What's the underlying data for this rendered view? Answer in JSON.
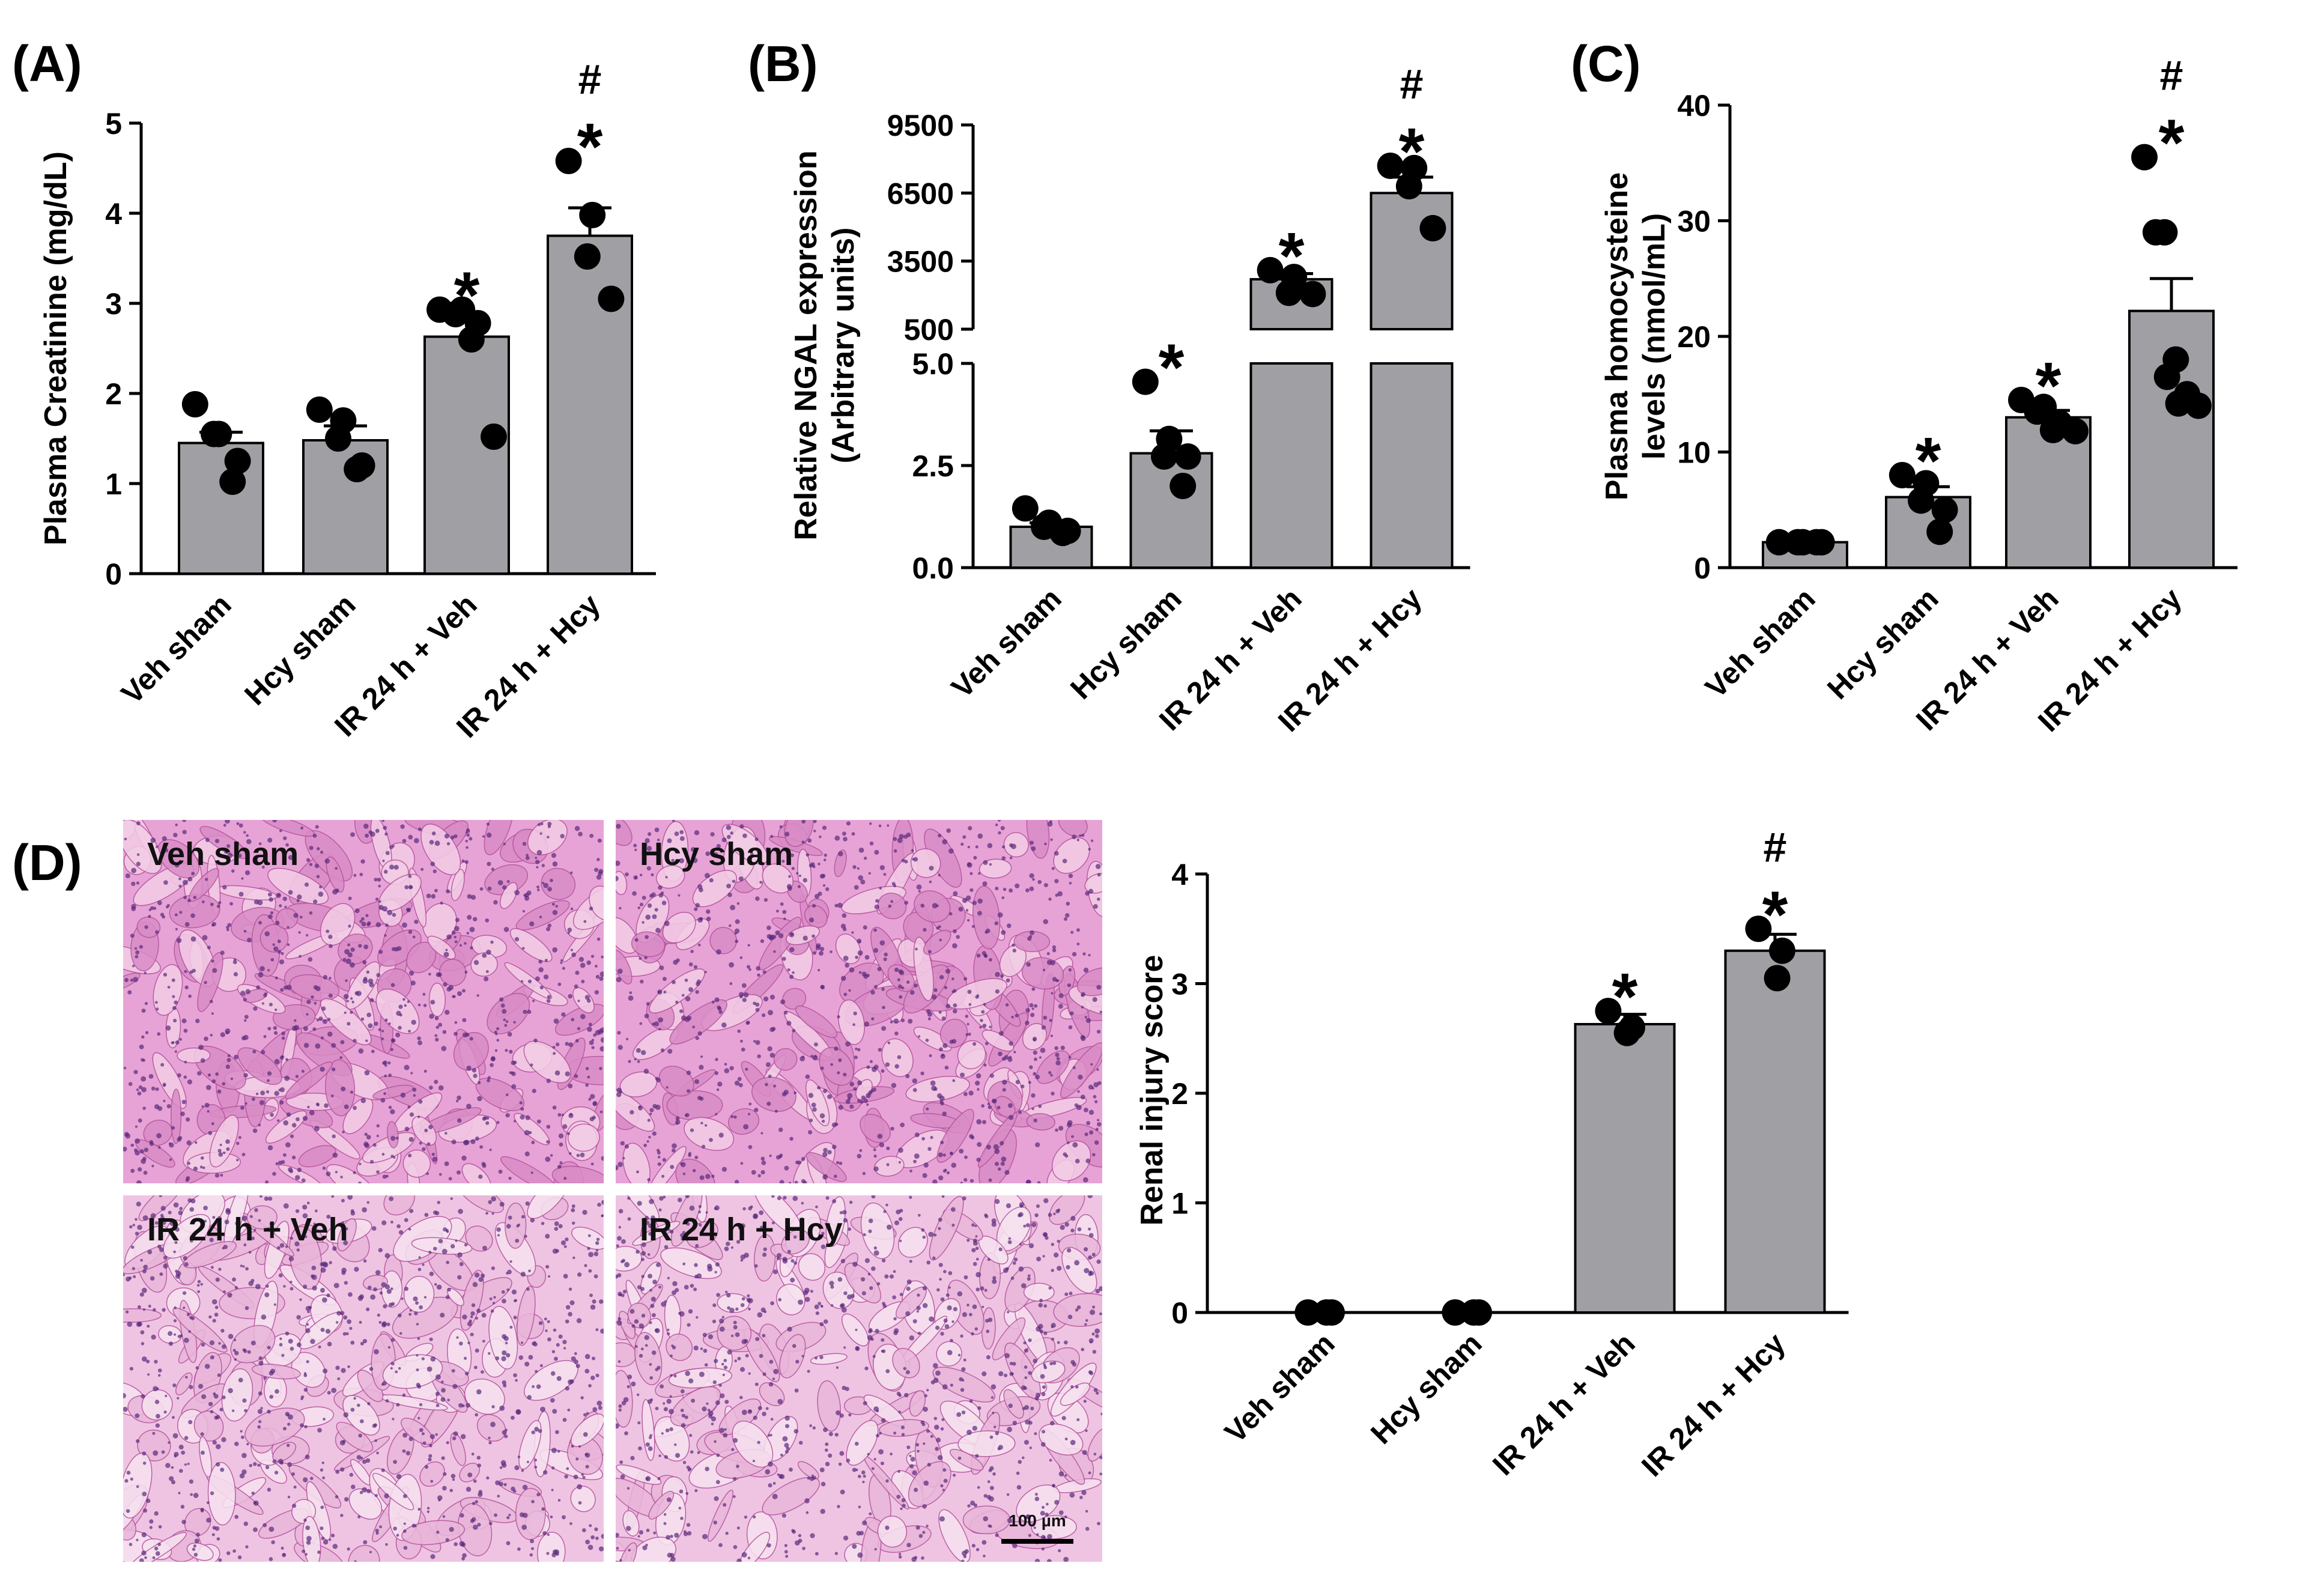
{
  "panel_letters": [
    "(A)",
    "(B)",
    "(C)",
    "(D)"
  ],
  "colors": {
    "bar_fill": "#a0a0a4",
    "dot": "#000000",
    "axis": "#000000",
    "tissue_base": "#e7a3d6"
  },
  "histology": {
    "labels": [
      "Veh sham",
      "Hcy sham",
      "IR 24 h + Veh",
      "IR 24 h + Hcy"
    ],
    "scale_bar": "100 µm"
  },
  "chart_data": [
    {
      "id": "A",
      "type": "bar",
      "title": "",
      "categories": [
        "Veh sham",
        "Hcy sham",
        "IR 24 h + Veh",
        "IR 24 h + Hcy"
      ],
      "ylabel": "Plasma Creatinine (mg/dL)",
      "xlabel": "",
      "ylim": [
        0,
        5
      ],
      "yticks": [
        0,
        1,
        2,
        3,
        4,
        5
      ],
      "values": [
        1.45,
        1.48,
        2.63,
        3.75
      ],
      "sem": [
        0.12,
        0.16,
        0.22,
        0.31
      ],
      "points": [
        [
          1.88,
          1.55,
          1.55,
          1.25,
          1.02
        ],
        [
          1.82,
          1.7,
          1.5,
          1.2,
          1.16
        ],
        [
          2.93,
          2.93,
          2.88,
          2.78,
          2.6,
          1.52
        ],
        [
          4.58,
          3.98,
          3.52,
          3.05
        ]
      ],
      "annotations": [
        "",
        "",
        "*",
        "*\n#"
      ]
    },
    {
      "id": "B",
      "type": "bar",
      "title": "",
      "categories": [
        "Veh sham",
        "Hcy sham",
        "IR 24 h + Veh",
        "IR 24 h + Hcy"
      ],
      "ylabel": "Relative NGAL expression\n(Arbitrary units)",
      "xlabel": "",
      "broken_axis": {
        "lower_range": [
          0,
          5.0
        ],
        "lower_ticks": [
          "0.0",
          "2.5",
          "5.0"
        ],
        "upper_range": [
          500,
          9500
        ],
        "upper_ticks": [
          "500",
          "3500",
          "6500",
          "9500"
        ]
      },
      "values": [
        1.0,
        2.8,
        2700,
        6500
      ],
      "sem": [
        0.1,
        0.55,
        250,
        700
      ],
      "points": [
        [
          1.45,
          1.1,
          1.0,
          0.9,
          0.85
        ],
        [
          4.55,
          3.15,
          2.72,
          2.72,
          2.0
        ],
        [
          3100,
          2800,
          2100,
          2050
        ],
        [
          7700,
          7600,
          6800,
          4950
        ]
      ],
      "annotations": [
        "",
        "*",
        "*",
        "*\n#"
      ]
    },
    {
      "id": "C",
      "type": "bar",
      "title": "",
      "categories": [
        "Veh sham",
        "Hcy sham",
        "IR 24 h + Veh",
        "IR 24 h + Hcy"
      ],
      "ylabel": "Plasma homocysteine\nlevels (nmol/mL)",
      "xlabel": "",
      "ylim": [
        0,
        40
      ],
      "yticks": [
        0,
        10,
        20,
        30,
        40
      ],
      "values": [
        2.2,
        6.1,
        13.0,
        22.2
      ],
      "sem": [
        0.15,
        0.9,
        0.6,
        2.8
      ],
      "points": [
        [
          2.2,
          2.2,
          2.2,
          2.2,
          2.2
        ],
        [
          8.0,
          7.3,
          5.8,
          5.0,
          3.1
        ],
        [
          14.5,
          13.9,
          13.5,
          12.5,
          11.9,
          11.8
        ],
        [
          35.5,
          29.0,
          29.0,
          18.0,
          16.5,
          15.0,
          14.2,
          14.0
        ]
      ],
      "annotations": [
        "",
        "*",
        "*",
        "*\n#"
      ]
    },
    {
      "id": "D",
      "type": "bar",
      "title": "",
      "categories": [
        "Veh sham",
        "Hcy sham",
        "IR 24 h + Veh",
        "IR 24 h + Hcy"
      ],
      "ylabel": "Renal injury score",
      "xlabel": "",
      "ylim": [
        0,
        4
      ],
      "yticks": [
        0,
        1,
        2,
        3,
        4
      ],
      "values": [
        0,
        0,
        2.63,
        3.3
      ],
      "sem": [
        0,
        0,
        0.09,
        0.15
      ],
      "points": [
        [
          0,
          0,
          0
        ],
        [
          0,
          0,
          0
        ],
        [
          2.75,
          2.6,
          2.55
        ],
        [
          3.5,
          3.3,
          3.05
        ]
      ],
      "annotations": [
        "",
        "",
        "*",
        "*\n#"
      ]
    }
  ]
}
